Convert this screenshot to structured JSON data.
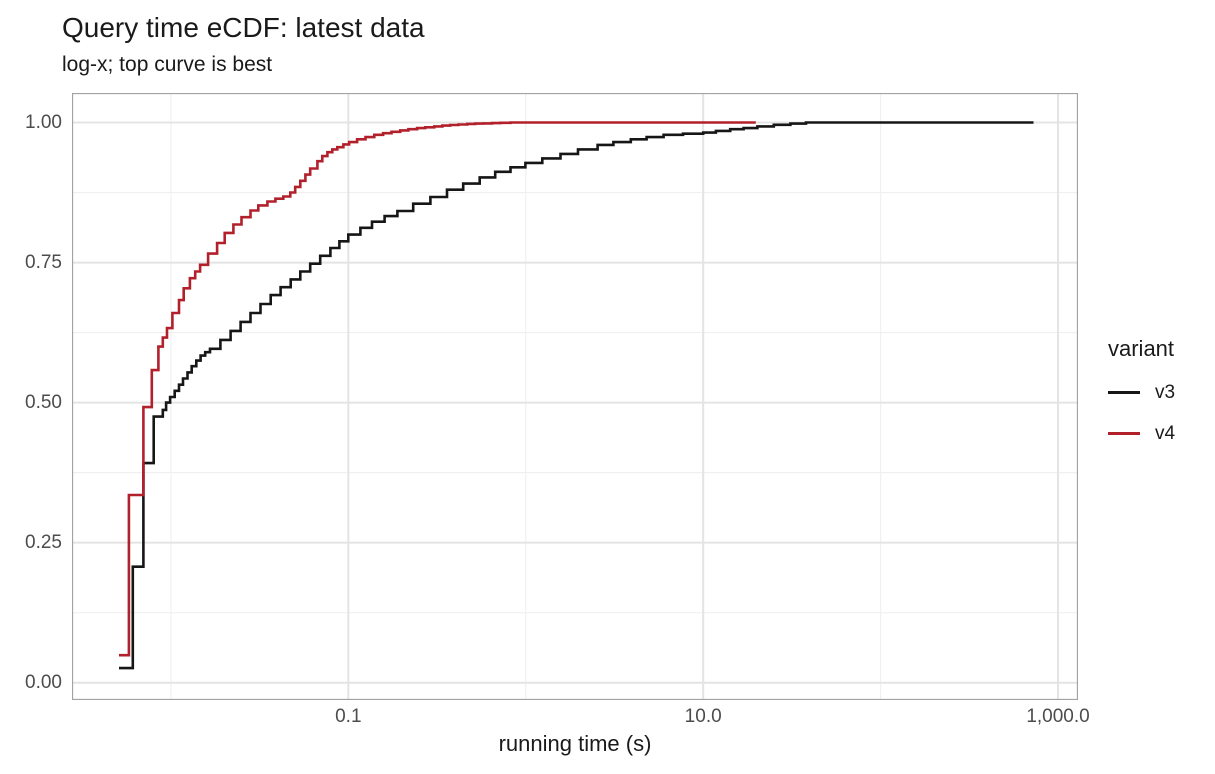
{
  "chart_data": {
    "type": "line",
    "subtype": "ecdf-step",
    "step": "after",
    "title": "Query time eCDF: latest data",
    "subtitle": "log-x; top curve is best",
    "xlabel": "running time (s)",
    "ylabel": "",
    "legend_title": "variant",
    "legend_position": "right",
    "grid": "on",
    "x_axis": {
      "scale": "log10",
      "range": [
        0.00277,
        1296
      ],
      "ticks": [
        {
          "v": 0.1,
          "label": "0.1"
        },
        {
          "v": 10,
          "label": "10.0"
        },
        {
          "v": 1000,
          "label": "1,000.0"
        }
      ],
      "minor_ticks": [
        0.01,
        1,
        100
      ]
    },
    "y_axis": {
      "scale": "linear",
      "range": [
        -0.0309,
        1.0527
      ],
      "ticks": [
        {
          "v": 0.0,
          "label": "0.00"
        },
        {
          "v": 0.25,
          "label": "0.25"
        },
        {
          "v": 0.5,
          "label": "0.50"
        },
        {
          "v": 0.75,
          "label": "0.75"
        },
        {
          "v": 1.0,
          "label": "1.00"
        }
      ],
      "minor_ticks": [
        0.125,
        0.375,
        0.625,
        0.875
      ]
    },
    "colors": {
      "panel_border": "#a3a3a3",
      "grid_major": "#e4e4e4",
      "grid_minor": "#f0f0f0",
      "tick_label": "#4c4c4c",
      "text": "#1a1a1a"
    },
    "series": [
      {
        "name": "v3",
        "color": "#161616",
        "points": [
          [
            0.0051,
            0.026
          ],
          [
            0.0061,
            0.207
          ],
          [
            0.007,
            0.392
          ],
          [
            0.008,
            0.475
          ],
          [
            0.009,
            0.487
          ],
          [
            0.0094,
            0.5
          ],
          [
            0.0099,
            0.51
          ],
          [
            0.0105,
            0.521
          ],
          [
            0.0111,
            0.532
          ],
          [
            0.0117,
            0.543
          ],
          [
            0.0124,
            0.554
          ],
          [
            0.0131,
            0.565
          ],
          [
            0.0139,
            0.575
          ],
          [
            0.0147,
            0.584
          ],
          [
            0.0156,
            0.59
          ],
          [
            0.0166,
            0.596
          ],
          [
            0.019,
            0.612
          ],
          [
            0.0217,
            0.628
          ],
          [
            0.0247,
            0.644
          ],
          [
            0.0281,
            0.66
          ],
          [
            0.032,
            0.676
          ],
          [
            0.0365,
            0.692
          ],
          [
            0.0415,
            0.706
          ],
          [
            0.0473,
            0.72
          ],
          [
            0.0536,
            0.734
          ],
          [
            0.061,
            0.748
          ],
          [
            0.0694,
            0.762
          ],
          [
            0.0792,
            0.776
          ],
          [
            0.089,
            0.788
          ],
          [
            0.1,
            0.8
          ],
          [
            0.117,
            0.812
          ],
          [
            0.136,
            0.823
          ],
          [
            0.16,
            0.833
          ],
          [
            0.189,
            0.842
          ],
          [
            0.232,
            0.855
          ],
          [
            0.29,
            0.867
          ],
          [
            0.36,
            0.88
          ],
          [
            0.444,
            0.891
          ],
          [
            0.55,
            0.902
          ],
          [
            0.673,
            0.912
          ],
          [
            0.82,
            0.92
          ],
          [
            0.995,
            0.928
          ],
          [
            1.24,
            0.936
          ],
          [
            1.57,
            0.944
          ],
          [
            1.97,
            0.952
          ],
          [
            2.54,
            0.96
          ],
          [
            3.12,
            0.965
          ],
          [
            3.91,
            0.97
          ],
          [
            4.8,
            0.974
          ],
          [
            5.98,
            0.978
          ],
          [
            7.7,
            0.98
          ],
          [
            10.0,
            0.982
          ],
          [
            11.8,
            0.985
          ],
          [
            14.2,
            0.988
          ],
          [
            16.9,
            0.99
          ],
          [
            20.2,
            0.993
          ],
          [
            25.0,
            0.996
          ],
          [
            31.0,
            0.998
          ],
          [
            38.0,
            1.0
          ],
          [
            727.0,
            1.0
          ]
        ]
      },
      {
        "name": "v4",
        "color": "#b2202b",
        "points": [
          [
            0.0051,
            0.049
          ],
          [
            0.0058,
            0.335
          ],
          [
            0.007,
            0.492
          ],
          [
            0.0078,
            0.558
          ],
          [
            0.0085,
            0.6
          ],
          [
            0.009,
            0.616
          ],
          [
            0.0095,
            0.633
          ],
          [
            0.0102,
            0.66
          ],
          [
            0.0111,
            0.683
          ],
          [
            0.0118,
            0.704
          ],
          [
            0.0128,
            0.722
          ],
          [
            0.0137,
            0.734
          ],
          [
            0.0146,
            0.746
          ],
          [
            0.0162,
            0.766
          ],
          [
            0.0182,
            0.785
          ],
          [
            0.0201,
            0.803
          ],
          [
            0.0225,
            0.818
          ],
          [
            0.025,
            0.831
          ],
          [
            0.0281,
            0.843
          ],
          [
            0.0311,
            0.852
          ],
          [
            0.035,
            0.859
          ],
          [
            0.0388,
            0.864
          ],
          [
            0.043,
            0.868
          ],
          [
            0.0471,
            0.875
          ],
          [
            0.0502,
            0.885
          ],
          [
            0.0536,
            0.896
          ],
          [
            0.0573,
            0.907
          ],
          [
            0.061,
            0.918
          ],
          [
            0.0669,
            0.931
          ],
          [
            0.0713,
            0.94
          ],
          [
            0.0762,
            0.947
          ],
          [
            0.0812,
            0.952
          ],
          [
            0.0867,
            0.956
          ],
          [
            0.0938,
            0.961
          ],
          [
            0.101,
            0.965
          ],
          [
            0.112,
            0.97
          ],
          [
            0.125,
            0.974
          ],
          [
            0.14,
            0.978
          ],
          [
            0.157,
            0.981
          ],
          [
            0.175,
            0.9835
          ],
          [
            0.196,
            0.986
          ],
          [
            0.218,
            0.988
          ],
          [
            0.244,
            0.99
          ],
          [
            0.271,
            0.9915
          ],
          [
            0.305,
            0.993
          ],
          [
            0.339,
            0.9945
          ],
          [
            0.375,
            0.9955
          ],
          [
            0.417,
            0.9965
          ],
          [
            0.468,
            0.9975
          ],
          [
            0.519,
            0.998
          ],
          [
            0.577,
            0.9985
          ],
          [
            0.646,
            0.999
          ],
          [
            0.72,
            0.9995
          ],
          [
            0.82,
            1.0
          ],
          [
            19.8,
            1.0
          ]
        ]
      }
    ]
  }
}
